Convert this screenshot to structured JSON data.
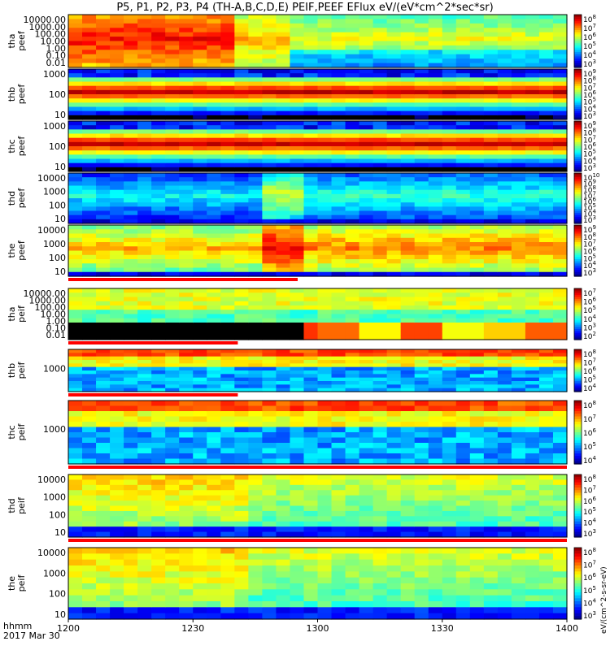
{
  "title": "P5, P1, P2, P3, P4 (TH-A,B,C,D,E) PEIF,PEEF EFlux eV/(eV*cm^2*sec*sr)",
  "chart_data": {
    "type": "heatmap",
    "x_label": "hhmm",
    "date_label": "2017 Mar 30",
    "x_ticks": [
      "1200",
      "1230",
      "1300",
      "1330",
      "1400"
    ],
    "colorbar_label": "eV/(cm^2-s-sr-eV)",
    "panels": [
      {
        "id": "tha-peef",
        "label": [
          "tha",
          "peef"
        ],
        "kind": "ion",
        "y_ticks": [
          "10000.00",
          "1000.00",
          "100.00",
          "10.00",
          "1.00",
          "0.10",
          "0.01"
        ],
        "colorbar_ticks": [
          "10^8",
          "10^7",
          "10^6",
          "10^5",
          "10^4",
          "10^3"
        ],
        "red_bar": false,
        "bar_end": 0
      },
      {
        "id": "thb-peef",
        "label": [
          "thb",
          "peef"
        ],
        "kind": "band",
        "y_ticks": [
          "1000",
          "100",
          "10"
        ],
        "colorbar_ticks": [
          "10^9",
          "10^8",
          "10^7",
          "10^6",
          "10^5",
          "10^4",
          "10^3"
        ],
        "red_bar": false,
        "bar_end": 0
      },
      {
        "id": "thc-peef",
        "label": [
          "thc",
          "peef"
        ],
        "kind": "band",
        "y_ticks": [
          "1000",
          "100",
          "10"
        ],
        "colorbar_ticks": [
          "10^9",
          "10^8",
          "10^7",
          "10^6",
          "10^5",
          "10^4",
          "10^3"
        ],
        "red_bar": false,
        "bar_end": 0
      },
      {
        "id": "thd-peef",
        "label": [
          "thd",
          "peef"
        ],
        "kind": "dyn",
        "y_ticks": [
          "10000",
          "1000",
          "100",
          "10"
        ],
        "colorbar_ticks": [
          "10^10",
          "10^9",
          "10^8",
          "10^7",
          "10^6",
          "10^5",
          "10^4",
          "10^3"
        ],
        "red_bar": false,
        "bar_end": 0
      },
      {
        "id": "the-peef",
        "label": [
          "the",
          "peef"
        ],
        "kind": "dyn2",
        "y_ticks": [
          "10000",
          "1000",
          "100",
          "10"
        ],
        "colorbar_ticks": [
          "10^9",
          "10^8",
          "10^7",
          "10^6",
          "10^5",
          "10^4",
          "10^3"
        ],
        "red_bar": true,
        "bar_end": 0.46
      },
      {
        "id": "tha-peif",
        "label": [
          "tha",
          "peif"
        ],
        "kind": "ionlow",
        "y_ticks": [
          "10000.00",
          "1000.00",
          "100.00",
          "10.00",
          "1.00",
          "0.10",
          "0.01"
        ],
        "colorbar_ticks": [
          "10^7",
          "10^6",
          "10^5",
          "10^4",
          "10^3",
          "10^2"
        ],
        "red_bar": true,
        "bar_end": 0.34
      },
      {
        "id": "thb-peif",
        "label": [
          "thb",
          "peif"
        ],
        "kind": "peif",
        "y_ticks": [
          "1000"
        ],
        "colorbar_ticks": [
          "10^8",
          "10^7",
          "10^6",
          "10^5",
          "10^4"
        ],
        "red_bar": true,
        "bar_end": 0.34
      },
      {
        "id": "thc-peif",
        "label": [
          "thc",
          "peif"
        ],
        "kind": "peif",
        "y_ticks": [
          "1000"
        ],
        "colorbar_ticks": [
          "10^8",
          "10^7",
          "10^6",
          "10^5",
          "10^4"
        ],
        "red_bar": true,
        "bar_end": 1.0
      },
      {
        "id": "thd-peif",
        "label": [
          "thd",
          "peif"
        ],
        "kind": "peifd",
        "y_ticks": [
          "10000",
          "1000",
          "100",
          "10"
        ],
        "colorbar_ticks": [
          "10^8",
          "10^7",
          "10^6",
          "10^5",
          "10^4",
          "10^3"
        ],
        "red_bar": true,
        "bar_end": 1.0
      },
      {
        "id": "the-peif",
        "label": [
          "the",
          "peif"
        ],
        "kind": "peifd",
        "y_ticks": [
          "10000",
          "1000",
          "100",
          "10"
        ],
        "colorbar_ticks": [
          "10^8",
          "10^7",
          "10^6",
          "10^5",
          "10^4",
          "10^3"
        ],
        "red_bar": false,
        "bar_end": 0
      }
    ]
  }
}
